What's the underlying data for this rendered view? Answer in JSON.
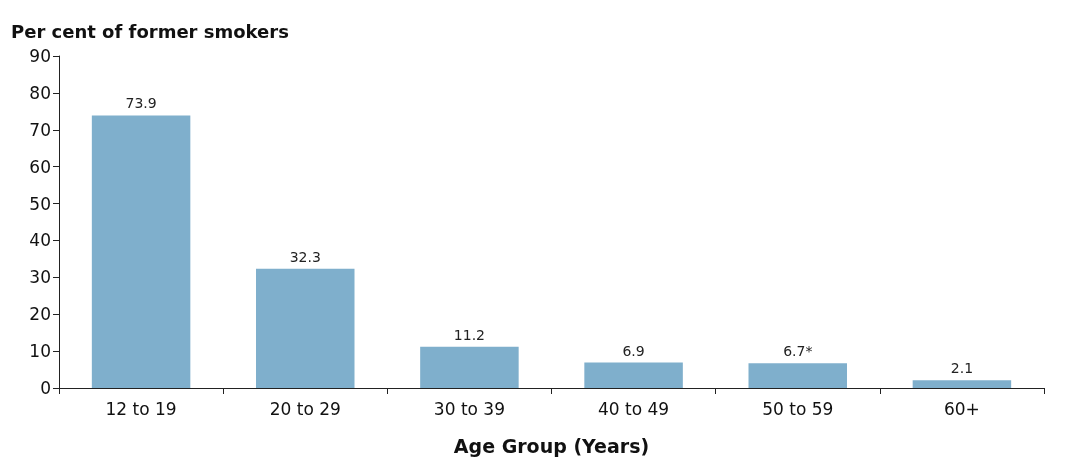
{
  "chart_data": {
    "type": "bar",
    "ylabel": "Per cent of former smokers",
    "xlabel": "Age Group (Years)",
    "categories": [
      "12 to 19",
      "20 to 29",
      "30 to 39",
      "40 to 49",
      "50 to 59",
      "60+"
    ],
    "values": [
      73.9,
      32.3,
      11.2,
      6.9,
      6.7,
      2.1
    ],
    "value_labels": [
      "73.9",
      "32.3",
      "11.2",
      "6.9",
      "6.7*",
      "2.1"
    ],
    "color": "#7fafcc",
    "ylim": [
      0,
      90
    ],
    "yticks": [
      0,
      10,
      20,
      30,
      40,
      50,
      60,
      70,
      80,
      90
    ],
    "grid": false
  }
}
